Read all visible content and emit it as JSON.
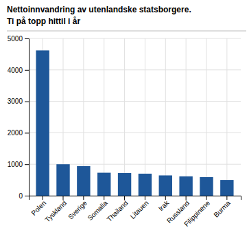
{
  "chart_data": {
    "type": "bar",
    "title": "Nettoinnvandring av utenlandske statsborgere.",
    "subtitle": "Ti på topp hittil i år",
    "categories": [
      "Polen",
      "Tyskland",
      "Sverige",
      "Somalia",
      "Thailand",
      "Litauen",
      "Irak",
      "Russland",
      "Filippinene",
      "Burma"
    ],
    "values": [
      4620,
      1000,
      940,
      730,
      720,
      700,
      645,
      615,
      590,
      500
    ],
    "color": "#1e5799",
    "ylim": [
      0,
      5000
    ],
    "yticks": [
      0,
      1000,
      2000,
      3000,
      4000,
      5000
    ],
    "grid": true
  }
}
